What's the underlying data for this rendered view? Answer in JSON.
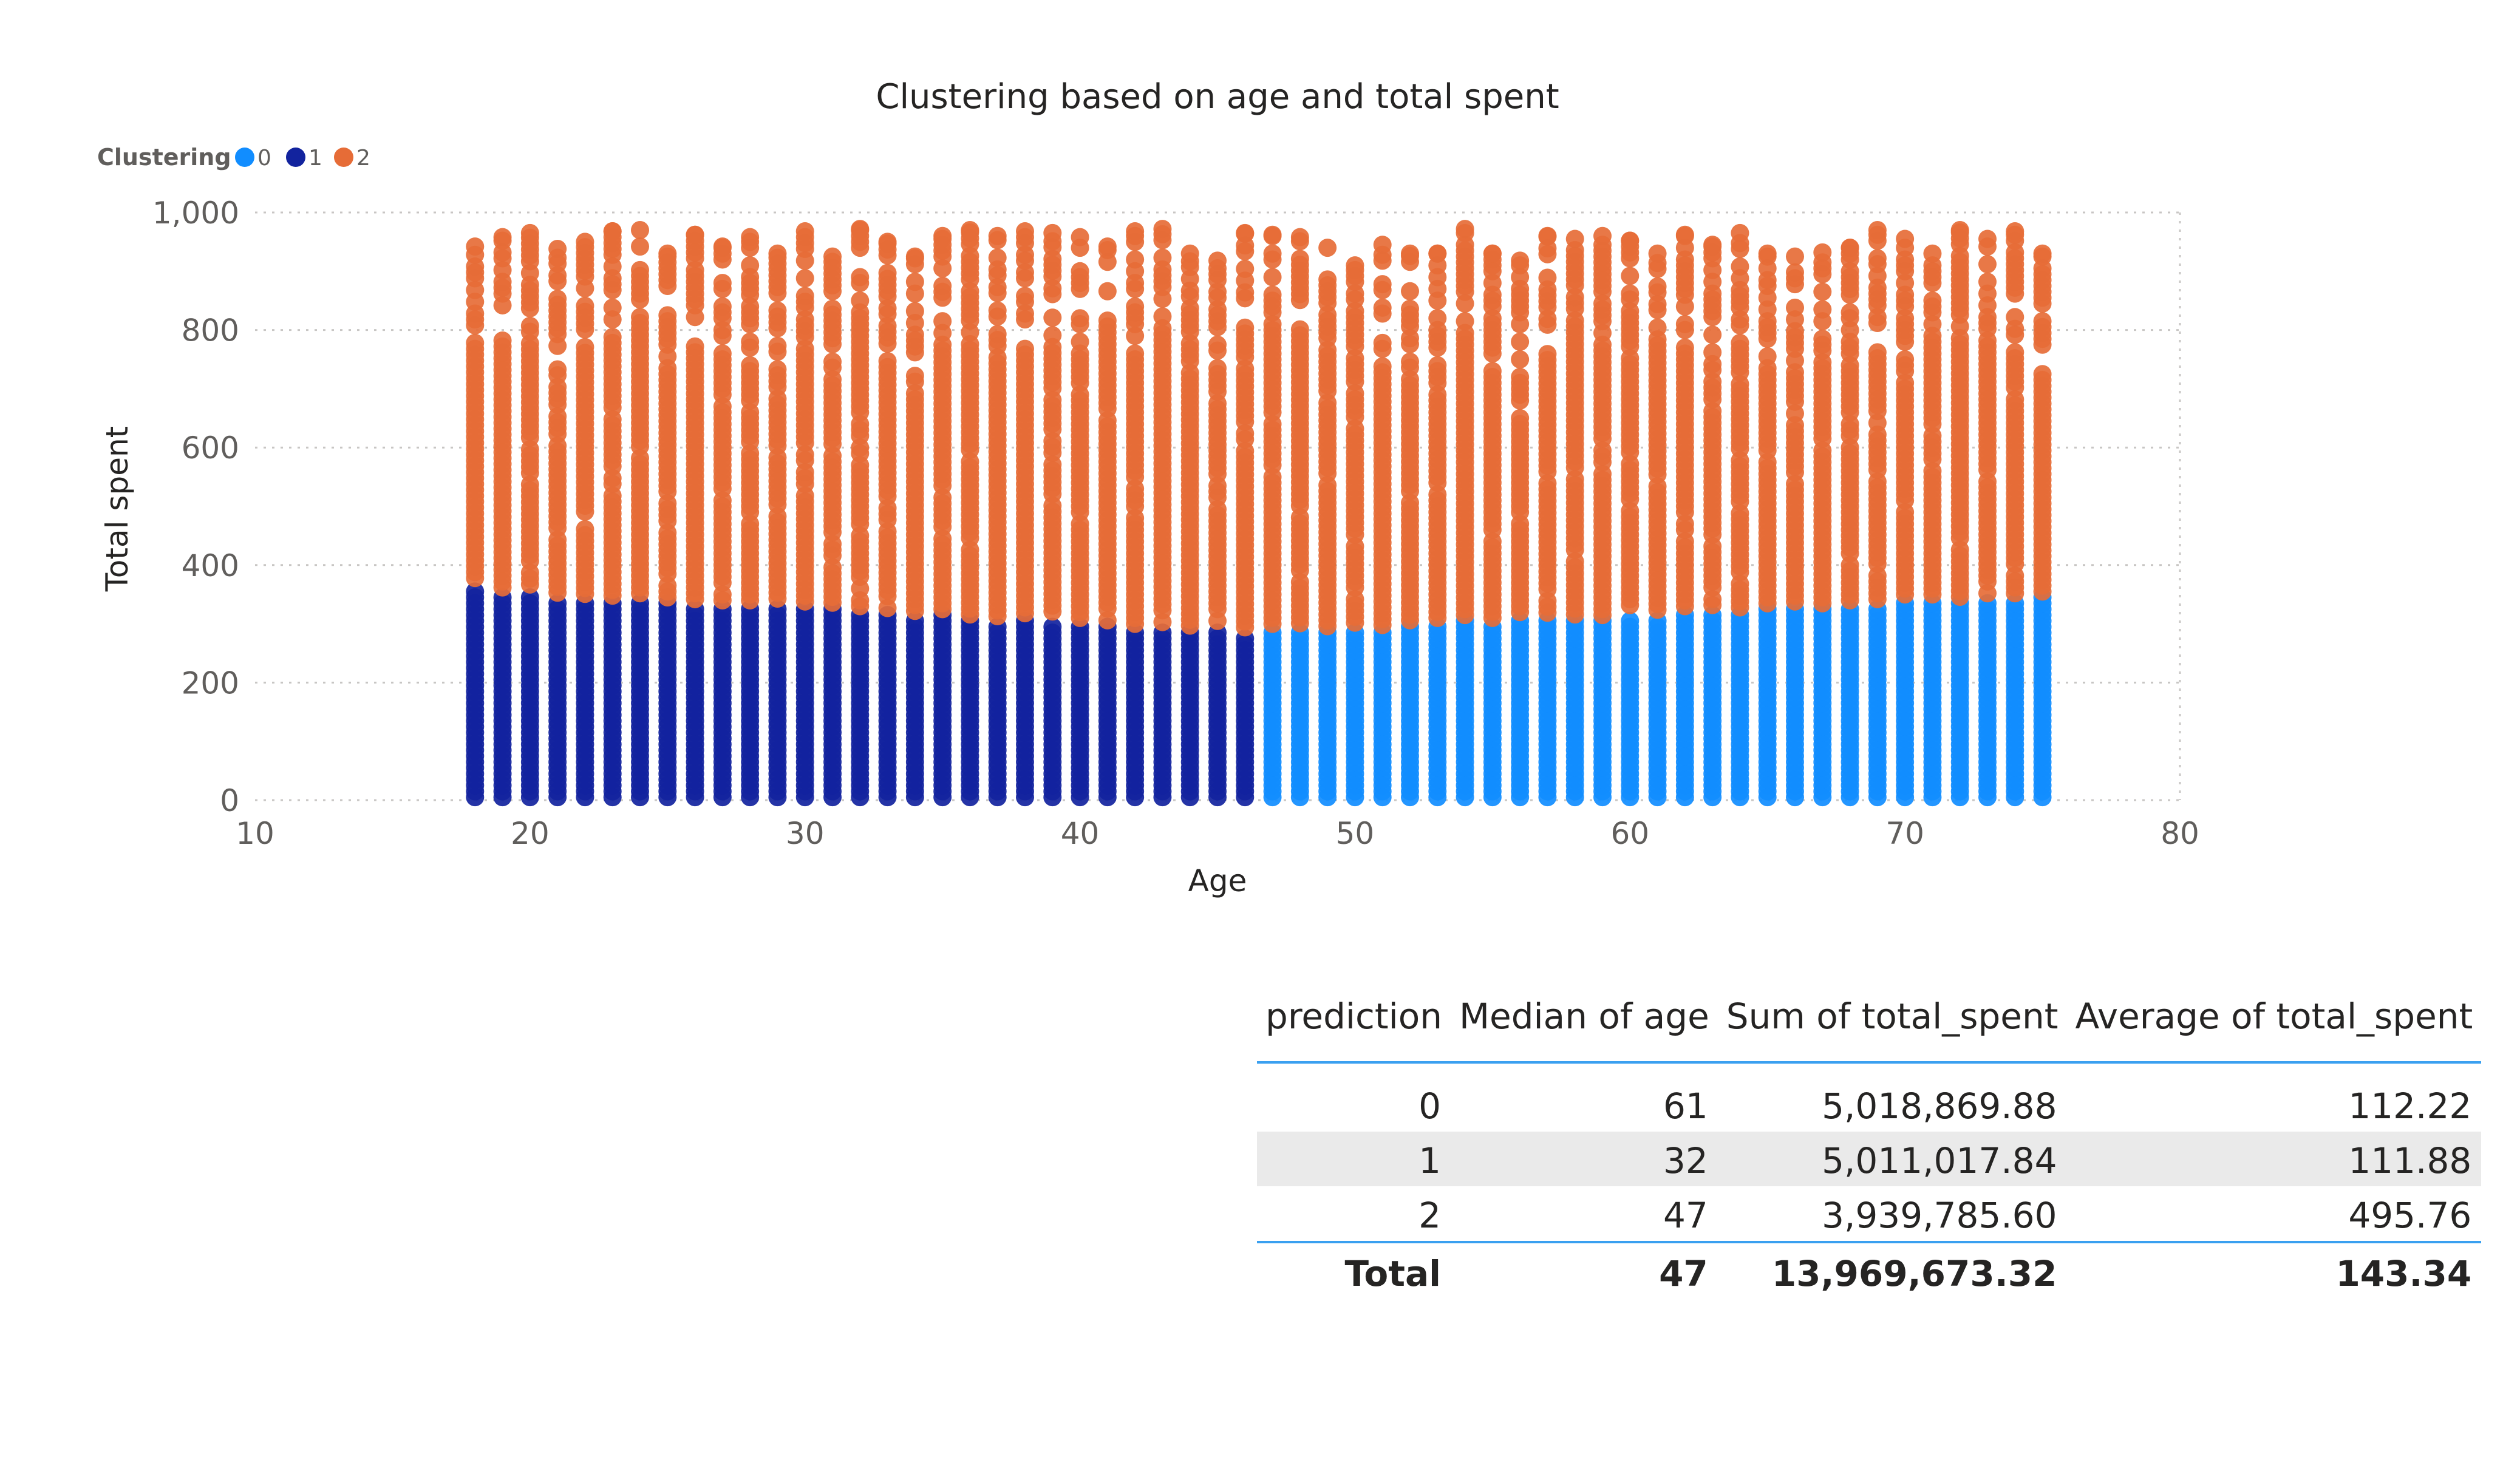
{
  "chart_data": {
    "type": "scatter",
    "title": "Clustering based on age and total spent",
    "xlabel": "Age",
    "ylabel": "Total spent",
    "xlim": [
      10,
      80
    ],
    "ylim": [
      0,
      1000
    ],
    "x_ticks": [
      "10",
      "20",
      "30",
      "40",
      "50",
      "60",
      "70",
      "80"
    ],
    "y_ticks": [
      "0",
      "200",
      "400",
      "600",
      "800",
      "1,000"
    ],
    "grid": true,
    "legend": {
      "title": "Clustering",
      "position": "top-left",
      "entries": [
        "0",
        "1",
        "2"
      ]
    },
    "colors": {
      "0": "#118dff",
      "1": "#12239e",
      "2": "#e66c37"
    },
    "series": [
      {
        "name": "0",
        "color": "#118dff",
        "age_range": [
          47,
          75
        ],
        "y_range": [
          0,
          345
        ]
      },
      {
        "name": "1",
        "color": "#12239e",
        "age_range": [
          18,
          46
        ],
        "y_range": [
          0,
          360
        ]
      },
      {
        "name": "2",
        "color": "#e66c37",
        "age_range": [
          18,
          75
        ],
        "y_range": [
          280,
          975
        ]
      }
    ],
    "boundary_top_of_low_clusters": [
      [
        18,
        358
      ],
      [
        19,
        352
      ],
      [
        20,
        347
      ],
      [
        21,
        343
      ],
      [
        22,
        341
      ],
      [
        23,
        338
      ],
      [
        24,
        342
      ],
      [
        25,
        335
      ],
      [
        26,
        332
      ],
      [
        27,
        330
      ],
      [
        28,
        330
      ],
      [
        29,
        333
      ],
      [
        30,
        328
      ],
      [
        31,
        326
      ],
      [
        32,
        320
      ],
      [
        33,
        317
      ],
      [
        34,
        312
      ],
      [
        35,
        315
      ],
      [
        36,
        306
      ],
      [
        37,
        303
      ],
      [
        38,
        308
      ],
      [
        39,
        301
      ],
      [
        40,
        300
      ],
      [
        41,
        296
      ],
      [
        42,
        290
      ],
      [
        43,
        293
      ],
      [
        44,
        287
      ],
      [
        45,
        285
      ],
      [
        46,
        284
      ],
      [
        47,
        290
      ],
      [
        48,
        291
      ],
      [
        49,
        286
      ],
      [
        50,
        292
      ],
      [
        51,
        288
      ],
      [
        52,
        296
      ],
      [
        53,
        300
      ],
      [
        54,
        305
      ],
      [
        55,
        300
      ],
      [
        56,
        310
      ],
      [
        57,
        309
      ],
      [
        58,
        306
      ],
      [
        59,
        305
      ],
      [
        60,
        312
      ],
      [
        61,
        314
      ],
      [
        62,
        320
      ],
      [
        63,
        322
      ],
      [
        64,
        318
      ],
      [
        65,
        325
      ],
      [
        66,
        328
      ],
      [
        67,
        325
      ],
      [
        68,
        330
      ],
      [
        69,
        332
      ],
      [
        70,
        340
      ],
      [
        71,
        340
      ],
      [
        72,
        336
      ],
      [
        73,
        342
      ],
      [
        74,
        342
      ],
      [
        75,
        345
      ]
    ],
    "column_max_total_spent": [
      [
        18,
        942
      ],
      [
        19,
        958
      ],
      [
        20,
        965
      ],
      [
        21,
        938
      ],
      [
        22,
        950
      ],
      [
        23,
        968
      ],
      [
        24,
        970
      ],
      [
        25,
        930
      ],
      [
        26,
        962
      ],
      [
        27,
        942
      ],
      [
        28,
        958
      ],
      [
        29,
        930
      ],
      [
        30,
        968
      ],
      [
        31,
        925
      ],
      [
        32,
        972
      ],
      [
        33,
        950
      ],
      [
        34,
        925
      ],
      [
        35,
        960
      ],
      [
        36,
        970
      ],
      [
        37,
        960
      ],
      [
        38,
        968
      ],
      [
        39,
        965
      ],
      [
        40,
        958
      ],
      [
        41,
        942
      ],
      [
        42,
        968
      ],
      [
        43,
        972
      ],
      [
        44,
        930
      ],
      [
        45,
        918
      ],
      [
        46,
        965
      ],
      [
        47,
        962
      ],
      [
        48,
        958
      ],
      [
        49,
        940
      ],
      [
        50,
        910
      ],
      [
        51,
        945
      ],
      [
        52,
        930
      ],
      [
        53,
        930
      ],
      [
        54,
        972
      ],
      [
        55,
        930
      ],
      [
        56,
        918
      ],
      [
        57,
        960
      ],
      [
        58,
        955
      ],
      [
        59,
        960
      ],
      [
        60,
        952
      ],
      [
        61,
        930
      ],
      [
        62,
        962
      ],
      [
        63,
        945
      ],
      [
        64,
        965
      ],
      [
        65,
        930
      ],
      [
        66,
        925
      ],
      [
        67,
        932
      ],
      [
        68,
        940
      ],
      [
        69,
        970
      ],
      [
        70,
        955
      ],
      [
        71,
        930
      ],
      [
        72,
        970
      ],
      [
        73,
        955
      ],
      [
        74,
        968
      ],
      [
        75,
        930
      ]
    ]
  },
  "table": {
    "headers": [
      "prediction",
      "Median of age",
      "Sum of total_spent",
      "Average of total_spent"
    ],
    "rows": [
      [
        "0",
        "61",
        "5,018,869.88",
        "112.22"
      ],
      [
        "1",
        "32",
        "5,011,017.84",
        "111.88"
      ],
      [
        "2",
        "47",
        "3,939,785.60",
        "495.76"
      ]
    ],
    "total": [
      "Total",
      "47",
      "13,969,673.32",
      "143.34"
    ]
  }
}
